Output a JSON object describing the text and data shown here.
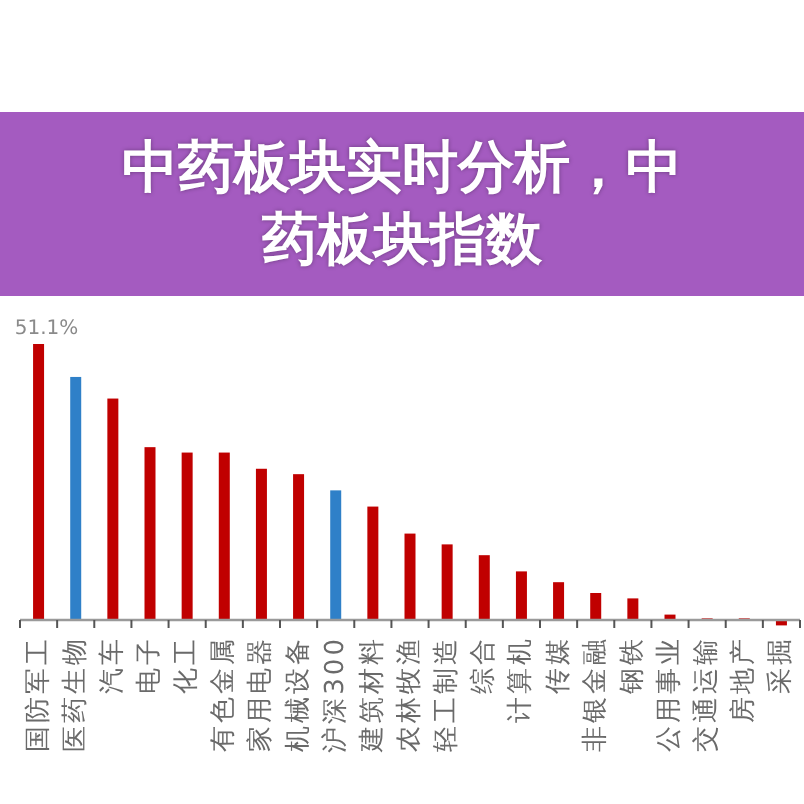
{
  "chart_data": {
    "type": "bar",
    "title": "中药板块实时分析，中药板块指数",
    "categories": [
      "国防军工",
      "医药生物",
      "汽车",
      "电子",
      "化工",
      "有色金属",
      "家用电器",
      "机械设备",
      "沪深300",
      "建筑材料",
      "农林牧渔",
      "轻工制造",
      "综合",
      "计算机",
      "传媒",
      "非银金融",
      "钢铁",
      "公用事业",
      "交通运输",
      "房地产",
      "采掘"
    ],
    "values": [
      51.1,
      45,
      41,
      32,
      31,
      31,
      28,
      27,
      24,
      21,
      16,
      14,
      12,
      9,
      7,
      5,
      4,
      1,
      0.3,
      0.3,
      -1
    ],
    "colors": [
      "#c00000",
      "#2f80c8",
      "#c00000",
      "#c00000",
      "#c00000",
      "#c00000",
      "#c00000",
      "#c00000",
      "#2f80c8",
      "#c00000",
      "#c00000",
      "#c00000",
      "#c00000",
      "#c00000",
      "#c00000",
      "#c00000",
      "#c00000",
      "#c00000",
      "#c00000",
      "#c00000",
      "#c00000"
    ],
    "value_labels": [
      "51.1%",
      null,
      null,
      null,
      null,
      null,
      null,
      null,
      null,
      null,
      null,
      null,
      null,
      null,
      null,
      null,
      null,
      null,
      null,
      null,
      null
    ]
  }
}
